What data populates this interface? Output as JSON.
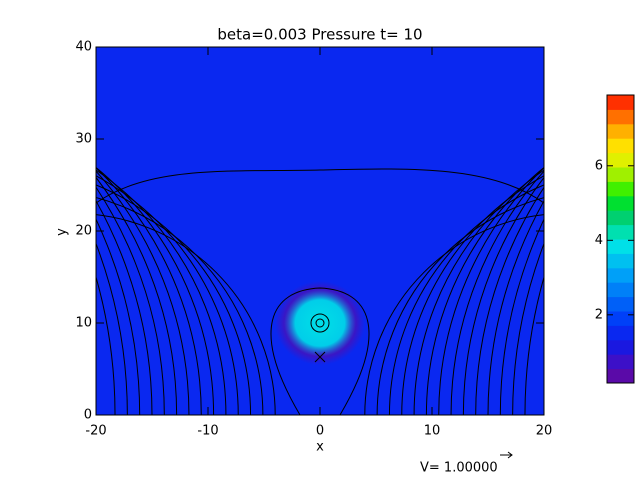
{
  "chart_data": {
    "type": "field",
    "title": "beta=0.003 Pressure t= 10",
    "x_label": "x",
    "y_label": "y",
    "xlim": [
      -20,
      20
    ],
    "xticks": [
      -20,
      -10,
      0,
      10,
      20
    ],
    "ylim": [
      0,
      40
    ],
    "yticks": [
      0,
      10,
      20,
      30,
      40
    ],
    "background_value": 1.4,
    "peaks": [
      {
        "x": 0,
        "y": 10,
        "value": 3.8
      }
    ],
    "clim": [
      0.17,
      7.9
    ],
    "cticks": [
      2,
      4,
      6
    ],
    "colormap": [
      "#5a0aa8",
      "#3c10c8",
      "#1a18e0",
      "#0a28f0",
      "#0040f8",
      "#0060f8",
      "#0080f8",
      "#00a0f8",
      "#00c0f0",
      "#00e0e8",
      "#00e0b0",
      "#00d070",
      "#00e030",
      "#40f000",
      "#a0f000",
      "#e0f000",
      "#ffe000",
      "#ffb000",
      "#ff7000",
      "#ff3000"
    ],
    "annotation": "V= 1.00000"
  }
}
